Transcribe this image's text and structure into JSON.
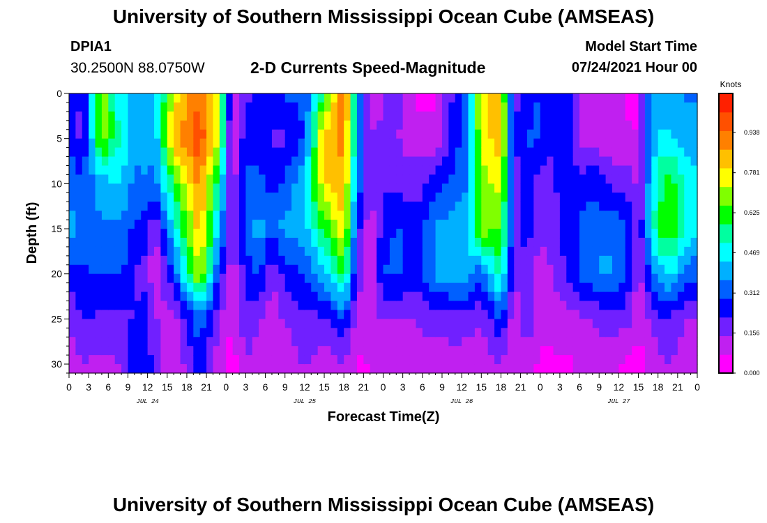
{
  "header": {
    "title": "University of Southern Mississippi Ocean Cube (AMSEAS)",
    "station_id": "DPIA1",
    "station_coords": "30.2500N  88.0750W",
    "plot_title": "2-D Currents Speed-Magnitude",
    "model_start_label": "Model Start Time",
    "model_start_value": "07/24/2021 Hour 00"
  },
  "footer": {
    "title": "University of Southern Mississippi Ocean Cube (AMSEAS)"
  },
  "chart_data": {
    "type": "heatmap",
    "xlabel": "Forecast Time(Z)",
    "ylabel": "Depth (ft)",
    "x_tick_labels": [
      "0",
      "3",
      "6",
      "9",
      "12",
      "15",
      "18",
      "21",
      "0",
      "3",
      "6",
      "9",
      "12",
      "15",
      "18",
      "21",
      "0",
      "3",
      "6",
      "9",
      "12",
      "15",
      "18",
      "21",
      "0",
      "3",
      "6",
      "9",
      "12",
      "15",
      "18",
      "21",
      "0"
    ],
    "date_labels": [
      {
        "label": "JUL 24",
        "hour": 12
      },
      {
        "label": "JUL 25",
        "hour": 36
      },
      {
        "label": "JUL 26",
        "hour": 60
      },
      {
        "label": "JUL 27",
        "hour": 84
      }
    ],
    "xlim": [
      0,
      96
    ],
    "ylim": [
      0,
      31
    ],
    "y_ticks": [
      0,
      5,
      10,
      15,
      20,
      25,
      30
    ],
    "y_inverted": true,
    "colorbar": {
      "title": "Knots",
      "tick_labels": [
        "0.000",
        "0.156",
        "0.312",
        "0.469",
        "0.625",
        "0.781",
        "0.938"
      ],
      "range": [
        0,
        1.09
      ],
      "colors": [
        "#ff00ff",
        "#c020f0",
        "#7020ff",
        "#0000ff",
        "#0060ff",
        "#00b0ff",
        "#00ffff",
        "#00ffa0",
        "#00ff00",
        "#80ff00",
        "#ffff00",
        "#ffc000",
        "#ff8000",
        "#ff5000",
        "#ff2000"
      ]
    },
    "depths_ft": [
      0,
      5,
      10,
      15,
      20,
      25,
      30
    ],
    "profiles": [
      {
        "hour": 0,
        "speed": [
          0.3,
          0.3,
          0.35,
          0.4,
          0.25,
          0.15,
          0.1
        ]
      },
      {
        "hour": 2,
        "speed": [
          0.2,
          0.18,
          0.3,
          0.35,
          0.28,
          0.22,
          0.15
        ]
      },
      {
        "hour": 5,
        "speed": [
          0.7,
          0.7,
          0.4,
          0.35,
          0.3,
          0.2,
          0.12
        ]
      },
      {
        "hour": 8,
        "speed": [
          0.45,
          0.48,
          0.45,
          0.35,
          0.3,
          0.2,
          0.15
        ]
      },
      {
        "hour": 10,
        "speed": [
          0.4,
          0.4,
          0.34,
          0.28,
          0.2,
          0.22,
          0.3
        ]
      },
      {
        "hour": 12,
        "speed": [
          0.4,
          0.42,
          0.36,
          0.25,
          0.2,
          0.25,
          0.25
        ]
      },
      {
        "hour": 13,
        "speed": [
          0.4,
          0.36,
          0.32,
          0.12,
          0.05,
          0.15,
          0.2
        ]
      },
      {
        "hour": 16,
        "speed": [
          0.75,
          0.85,
          0.6,
          0.45,
          0.3,
          0.1,
          0.08
        ]
      },
      {
        "hour": 20,
        "speed": [
          0.95,
          1.0,
          0.9,
          0.85,
          0.75,
          0.35,
          0.25
        ]
      },
      {
        "hour": 23,
        "speed": [
          0.75,
          0.7,
          0.5,
          0.4,
          0.25,
          0.15,
          0.1
        ]
      },
      {
        "hour": 25,
        "speed": [
          0.05,
          0.05,
          0.1,
          0.15,
          0.1,
          0.08,
          0.03
        ]
      },
      {
        "hour": 27,
        "speed": [
          0.2,
          0.28,
          0.3,
          0.3,
          0.25,
          0.2,
          0.15
        ]
      },
      {
        "hour": 29,
        "speed": [
          0.22,
          0.28,
          0.3,
          0.42,
          0.3,
          0.15,
          0.1
        ]
      },
      {
        "hour": 31,
        "speed": [
          0.3,
          0.2,
          0.28,
          0.3,
          0.15,
          0.1,
          0.08
        ]
      },
      {
        "hour": 33,
        "speed": [
          0.3,
          0.2,
          0.3,
          0.4,
          0.25,
          0.15,
          0.1
        ]
      },
      {
        "hour": 36,
        "speed": [
          0.3,
          0.3,
          0.45,
          0.4,
          0.3,
          0.2,
          0.15
        ]
      },
      {
        "hour": 39,
        "speed": [
          0.6,
          0.85,
          0.8,
          0.6,
          0.4,
          0.2,
          0.1
        ]
      },
      {
        "hour": 42,
        "speed": [
          0.95,
          0.9,
          0.85,
          0.8,
          0.6,
          0.3,
          0.15
        ]
      },
      {
        "hour": 44,
        "speed": [
          0.45,
          0.4,
          0.35,
          0.25,
          0.2,
          0.12,
          0.05
        ]
      },
      {
        "hour": 46,
        "speed": [
          0.1,
          0.15,
          0.15,
          0.1,
          0.08,
          0.1,
          0.08
        ]
      },
      {
        "hour": 48,
        "speed": [
          0.15,
          0.15,
          0.2,
          0.25,
          0.3,
          0.15,
          0.08
        ]
      },
      {
        "hour": 50,
        "speed": [
          0.2,
          0.15,
          0.2,
          0.3,
          0.3,
          0.15,
          0.1
        ]
      },
      {
        "hour": 53,
        "speed": [
          0.05,
          0.1,
          0.18,
          0.25,
          0.25,
          0.15,
          0.1
        ]
      },
      {
        "hour": 56,
        "speed": [
          0.05,
          0.1,
          0.25,
          0.38,
          0.38,
          0.18,
          0.1
        ]
      },
      {
        "hour": 59,
        "speed": [
          0.25,
          0.25,
          0.33,
          0.4,
          0.4,
          0.2,
          0.1
        ]
      },
      {
        "hour": 61,
        "speed": [
          0.35,
          0.35,
          0.35,
          0.45,
          0.4,
          0.18,
          0.1
        ]
      },
      {
        "hour": 63,
        "speed": [
          0.8,
          0.75,
          0.7,
          0.7,
          0.3,
          0.15,
          0.1
        ]
      },
      {
        "hour": 66,
        "speed": [
          0.8,
          0.85,
          0.75,
          0.65,
          0.55,
          0.3,
          0.15
        ]
      },
      {
        "hour": 68,
        "speed": [
          0.2,
          0.2,
          0.18,
          0.2,
          0.15,
          0.1,
          0.08
        ]
      },
      {
        "hour": 70,
        "speed": [
          0.25,
          0.3,
          0.3,
          0.25,
          0.2,
          0.2,
          0.12
        ]
      },
      {
        "hour": 72,
        "speed": [
          0.3,
          0.3,
          0.15,
          0.15,
          0.1,
          0.1,
          0.05
        ]
      },
      {
        "hour": 74,
        "speed": [
          0.25,
          0.22,
          0.2,
          0.2,
          0.15,
          0.1,
          0.06
        ]
      },
      {
        "hour": 76,
        "speed": [
          0.25,
          0.3,
          0.28,
          0.25,
          0.22,
          0.12,
          0.06
        ]
      },
      {
        "hour": 78,
        "speed": [
          0.15,
          0.12,
          0.25,
          0.3,
          0.3,
          0.12,
          0.08
        ]
      },
      {
        "hour": 80,
        "speed": [
          0.1,
          0.12,
          0.28,
          0.33,
          0.35,
          0.15,
          0.1
        ]
      },
      {
        "hour": 82,
        "speed": [
          0.08,
          0.1,
          0.22,
          0.35,
          0.38,
          0.18,
          0.1
        ]
      },
      {
        "hour": 84,
        "speed": [
          0.08,
          0.08,
          0.2,
          0.32,
          0.35,
          0.18,
          0.08
        ]
      },
      {
        "hour": 86,
        "speed": [
          0.05,
          0.08,
          0.18,
          0.28,
          0.25,
          0.15,
          0.05
        ]
      },
      {
        "hour": 87,
        "speed": [
          0.05,
          0.08,
          0.1,
          0.15,
          0.1,
          0.08,
          0.02
        ]
      },
      {
        "hour": 88,
        "speed": [
          0.3,
          0.3,
          0.3,
          0.3,
          0.22,
          0.12,
          0.08
        ]
      },
      {
        "hour": 90,
        "speed": [
          0.4,
          0.45,
          0.55,
          0.6,
          0.4,
          0.2,
          0.12
        ]
      },
      {
        "hour": 92,
        "speed": [
          0.4,
          0.45,
          0.62,
          0.65,
          0.45,
          0.2,
          0.15
        ]
      },
      {
        "hour": 94,
        "speed": [
          0.35,
          0.4,
          0.5,
          0.5,
          0.35,
          0.15,
          0.1
        ]
      },
      {
        "hour": 96,
        "speed": [
          0.35,
          0.4,
          0.45,
          0.45,
          0.3,
          0.15,
          0.1
        ]
      }
    ]
  }
}
